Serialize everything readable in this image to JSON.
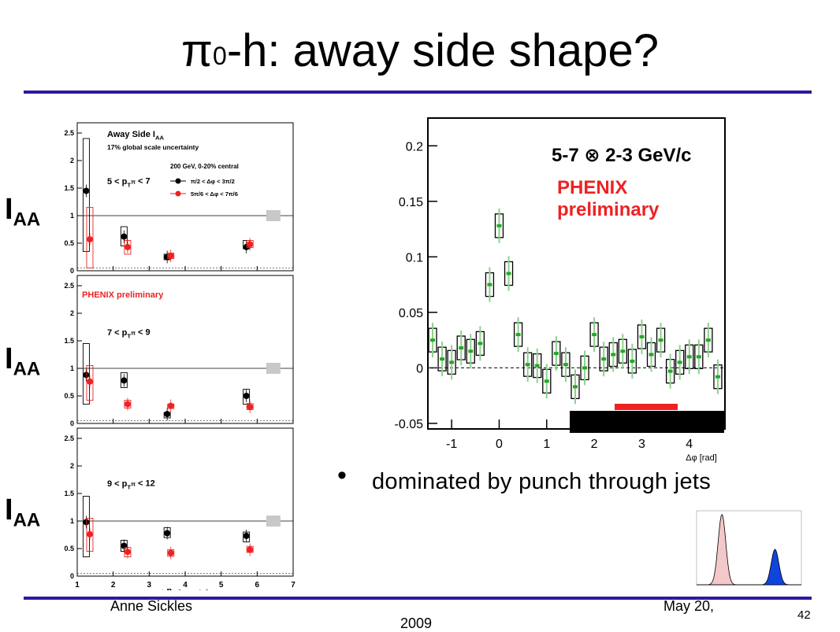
{
  "slide": {
    "title_pre": "π",
    "title_sup": "0",
    "title_post": "-h: away side shape?",
    "bullet": "dominated by punch through jets",
    "author": "Anne Sickles",
    "date_line1": "May 20,",
    "date_line2": "2009",
    "page": "42",
    "iaa_main": "I",
    "iaa_sub": "AA",
    "colors": {
      "rule": "#2a1aa0",
      "red": "#ee2222",
      "green": "#22aa22"
    }
  },
  "chart_data": [
    {
      "type": "scatter",
      "title": "Away Side I_AA",
      "subtitle": "17% global scale uncertainty",
      "legend_title": "200 GeV, 0-20% central",
      "panel_label": "5 < p_T^π < 7",
      "xlim": [
        1,
        7
      ],
      "ylim": [
        0,
        2.6
      ],
      "x_ticks": [
        "1",
        "2",
        "3",
        "4",
        "5",
        "6",
        "7"
      ],
      "y_ticks": [
        "0",
        "0.5",
        "1",
        "1.5",
        "2",
        "2.5"
      ],
      "series": [
        {
          "name": "π/2 < Δφ < 3π/2",
          "color": "#000000",
          "x": [
            1.25,
            2.3,
            3.5,
            5.7
          ],
          "y": [
            1.45,
            0.62,
            0.25,
            0.43
          ],
          "syslo": [
            0.35,
            0.45,
            0.2,
            0.4
          ],
          "syshi": [
            2.4,
            0.8,
            0.3,
            0.55
          ]
        },
        {
          "name": "5π/6 < Δφ < 7π/6",
          "color": "#ee2222",
          "x": [
            1.35,
            2.4,
            3.6,
            5.8
          ],
          "y": [
            0.57,
            0.43,
            0.27,
            0.48
          ],
          "syslo": [
            0.05,
            0.3,
            0.22,
            0.42
          ],
          "syshi": [
            1.15,
            0.55,
            0.32,
            0.55
          ]
        }
      ]
    },
    {
      "type": "scatter",
      "annotation": "PHENIX preliminary",
      "panel_label": "7 < p_T^π < 9",
      "xlim": [
        1,
        7
      ],
      "ylim": [
        0,
        2.6
      ],
      "x_ticks": [
        "1",
        "2",
        "3",
        "4",
        "5",
        "6",
        "7"
      ],
      "y_ticks": [
        "0",
        "0.5",
        "1",
        "1.5",
        "2",
        "2.5"
      ],
      "series": [
        {
          "name": "π/2 < Δφ < 3π/2",
          "color": "#000000",
          "x": [
            1.25,
            2.3,
            3.5,
            5.7
          ],
          "y": [
            0.88,
            0.78,
            0.17,
            0.5
          ],
          "syslo": [
            0.35,
            0.65,
            0.1,
            0.35
          ],
          "syshi": [
            1.45,
            0.92,
            0.2,
            0.62
          ]
        },
        {
          "name": "5π/6 < Δφ < 7π/6",
          "color": "#ee2222",
          "x": [
            1.35,
            2.4,
            3.6,
            5.8
          ],
          "y": [
            0.76,
            0.35,
            0.32,
            0.3
          ],
          "syslo": [
            0.42,
            0.28,
            0.27,
            0.25
          ],
          "syshi": [
            1.05,
            0.42,
            0.35,
            0.36
          ]
        }
      ]
    },
    {
      "type": "scatter",
      "panel_label": "9 < p_T^π < 12",
      "xlabel": "h^± p_T [GeV/c]",
      "xlim": [
        1,
        7
      ],
      "ylim": [
        0,
        2.6
      ],
      "x_ticks": [
        "1",
        "2",
        "3",
        "4",
        "5",
        "6",
        "7"
      ],
      "y_ticks": [
        "0",
        "0.5",
        "1",
        "1.5",
        "2",
        "2.5"
      ],
      "series": [
        {
          "name": "π/2 < Δφ < 3π/2",
          "color": "#000000",
          "x": [
            1.25,
            2.3,
            3.5,
            5.7
          ],
          "y": [
            0.98,
            0.55,
            0.78,
            0.73
          ],
          "syslo": [
            0.35,
            0.45,
            0.7,
            0.62
          ],
          "syshi": [
            1.45,
            0.65,
            0.88,
            0.8
          ]
        },
        {
          "name": "5π/6 < Δφ < 7π/6",
          "color": "#ee2222",
          "x": [
            1.35,
            2.4,
            3.6,
            5.8
          ],
          "y": [
            0.76,
            0.44,
            0.42,
            0.48
          ],
          "syslo": [
            0.45,
            0.35,
            0.36,
            0.43
          ],
          "syshi": [
            1.05,
            0.52,
            0.48,
            0.54
          ]
        }
      ]
    },
    {
      "type": "scatter",
      "title": "5-7 ⊗ 2-3 GeV/c",
      "annotation": "PHENIX preliminary",
      "xlabel": "Δφ [rad]",
      "xlim": [
        -1.5,
        4.75
      ],
      "ylim": [
        -0.055,
        0.225
      ],
      "x_ticks": [
        "-1",
        "0",
        "1",
        "2",
        "3",
        "4"
      ],
      "y_ticks": [
        "-0.05",
        "0",
        "0.05",
        "0.1",
        "0.15",
        "0.2"
      ],
      "series": [
        {
          "name": "",
          "color": "#22aa22",
          "x": [
            -1.4,
            -1.2,
            -1.0,
            -0.8,
            -0.6,
            -0.4,
            -0.2,
            0.0,
            0.2,
            0.4,
            0.6,
            0.8,
            1.0,
            1.2,
            1.4,
            1.6,
            1.8,
            2.0,
            2.2,
            2.4,
            2.6,
            2.8,
            3.0,
            3.2,
            3.4,
            3.6,
            3.8,
            4.0,
            4.2,
            4.4,
            4.6
          ],
          "y": [
            0.025,
            0.008,
            0.005,
            0.018,
            0.015,
            0.022,
            0.075,
            0.128,
            0.085,
            0.03,
            0.003,
            0.002,
            -0.012,
            0.013,
            0.003,
            -0.017,
            0.0,
            0.03,
            0.008,
            0.012,
            0.015,
            0.006,
            0.028,
            0.012,
            0.025,
            -0.003,
            0.005,
            0.01,
            0.01,
            0.025,
            -0.008
          ]
        }
      ]
    },
    {
      "type": "area",
      "series": [
        {
          "name": "",
          "color": "#f2c8c8",
          "center": 0.0,
          "width": 0.5,
          "height": 0.95
        },
        {
          "name": "",
          "color": "#1144dd",
          "center": 3.14,
          "width": 0.5,
          "height": 0.48
        }
      ],
      "xlim": [
        -1.5,
        4.7
      ],
      "ylim": [
        0,
        1.0
      ]
    }
  ]
}
